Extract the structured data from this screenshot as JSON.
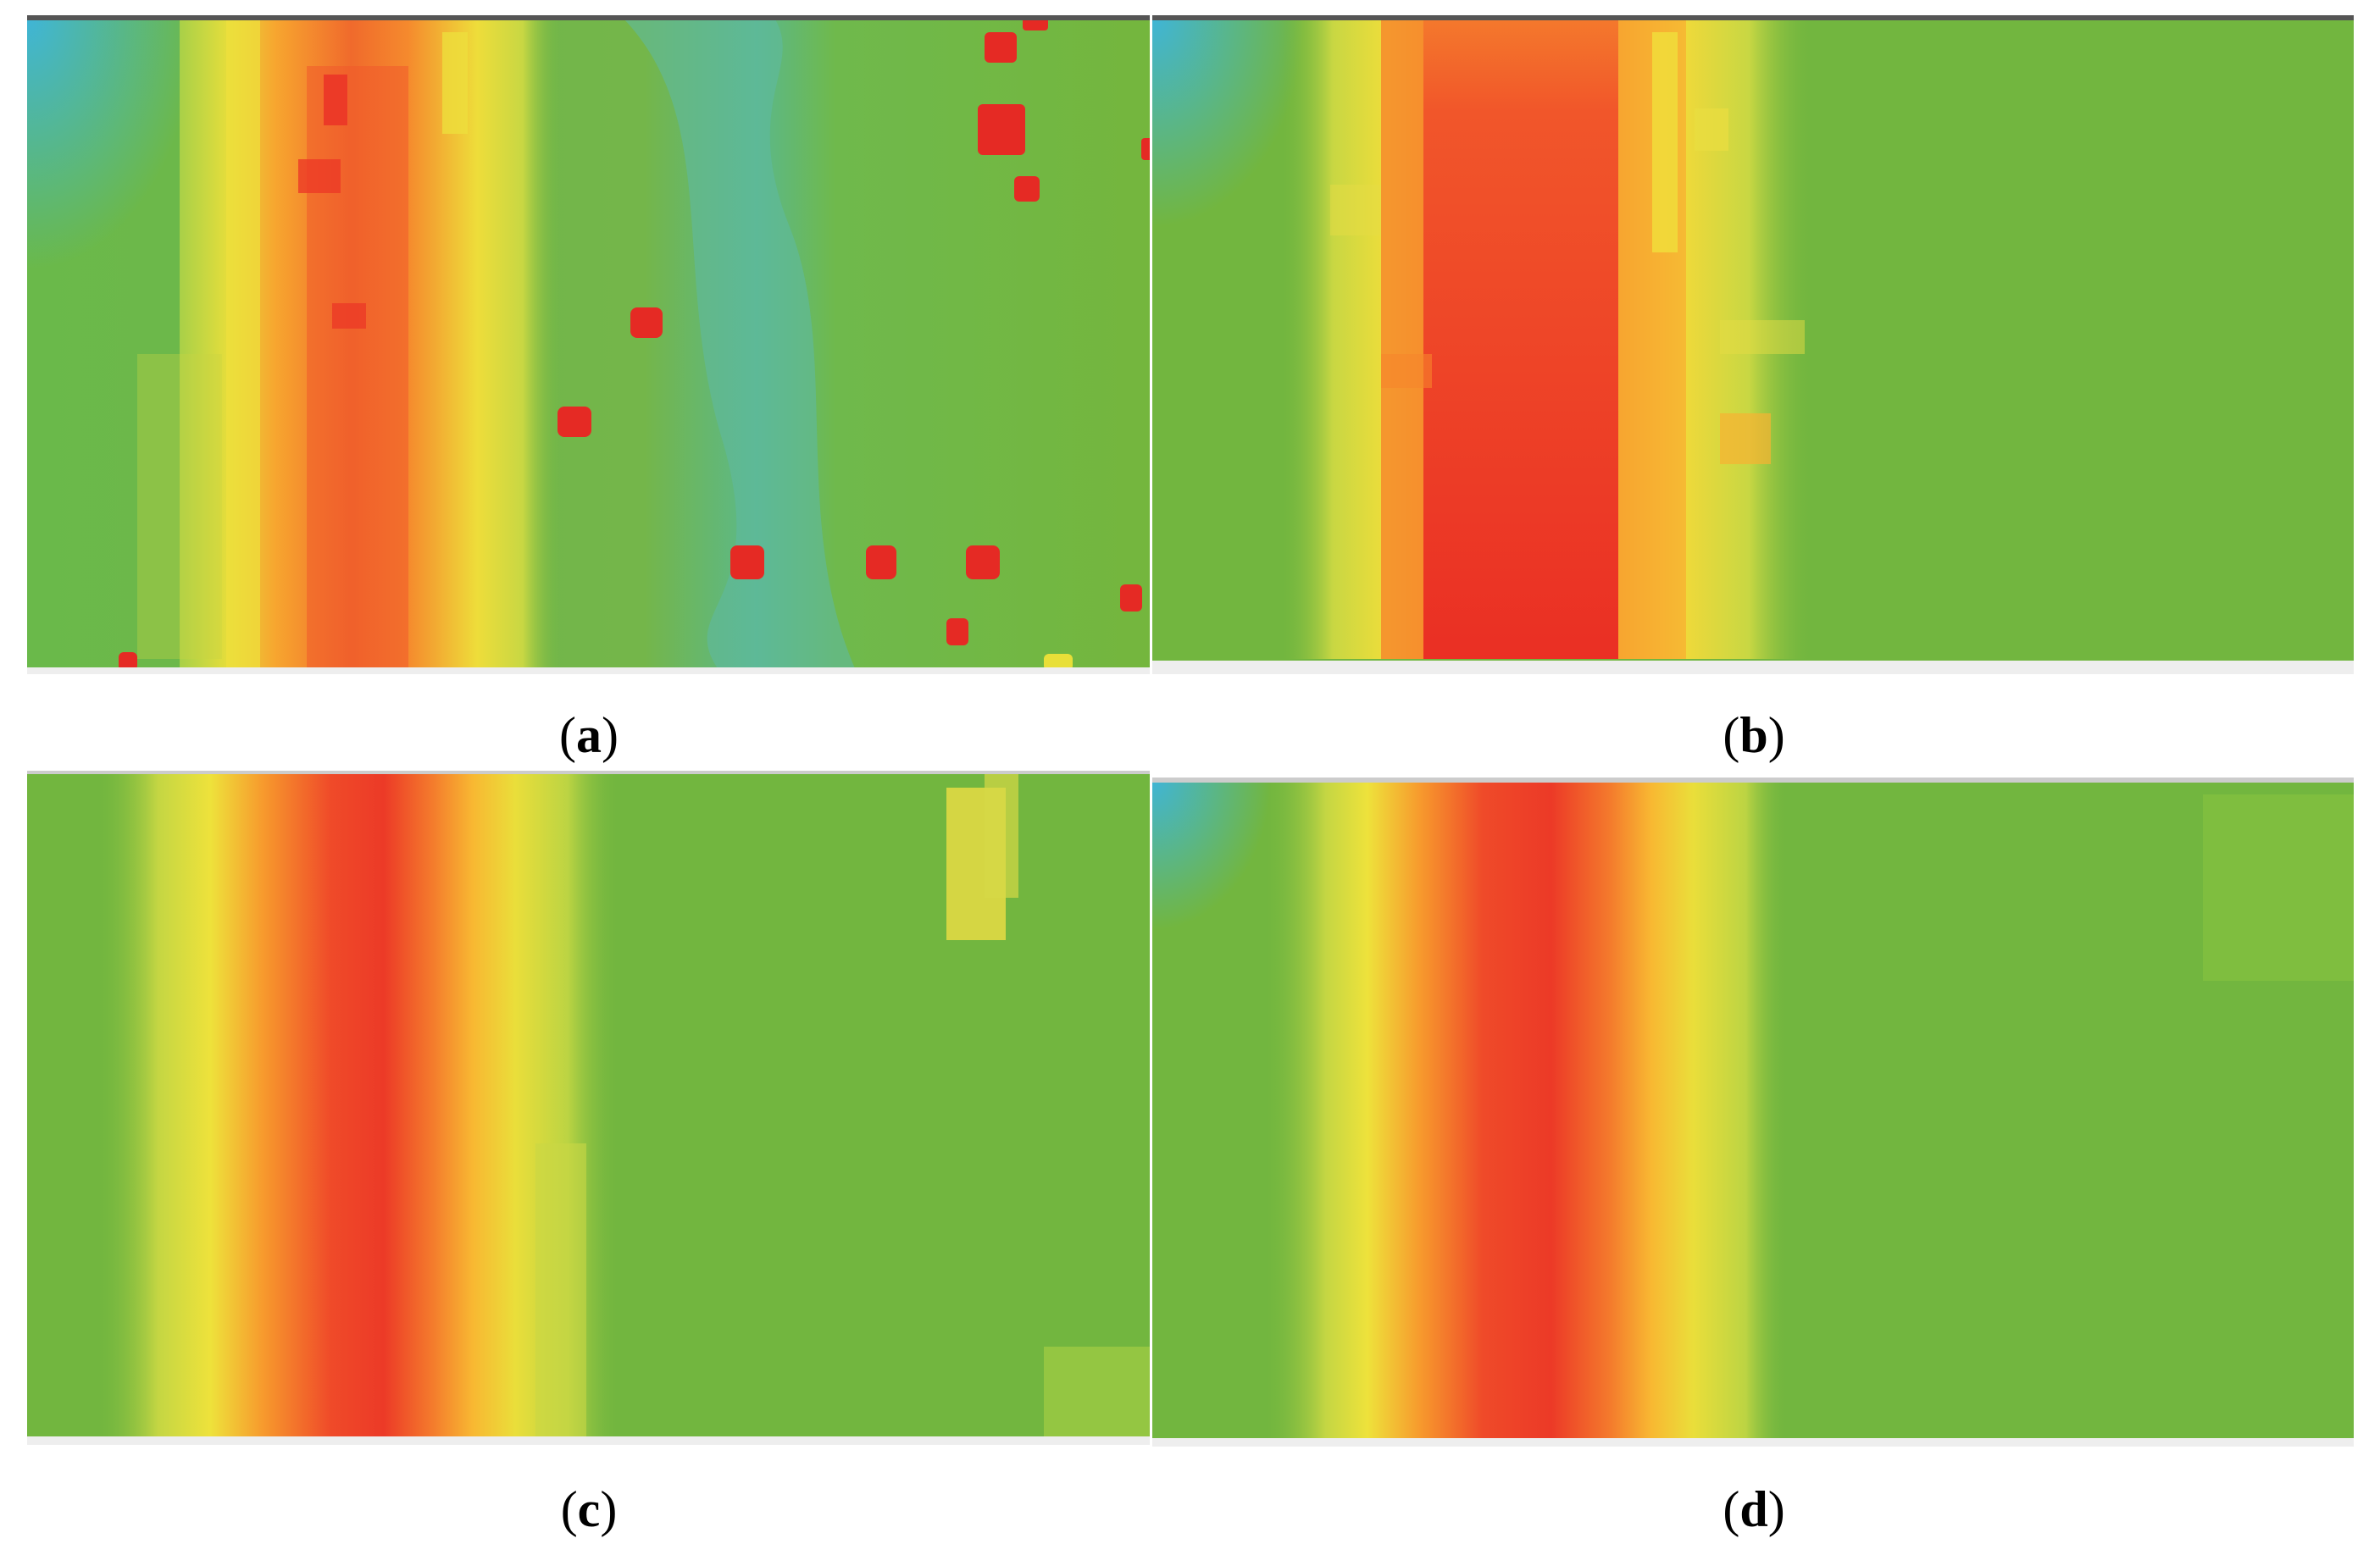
{
  "figure": {
    "panels": [
      {
        "id": "a",
        "caption_open": "(",
        "caption_letter": "a",
        "caption_close": ")"
      },
      {
        "id": "b",
        "caption_open": "(",
        "caption_letter": "b",
        "caption_close": ")"
      },
      {
        "id": "c",
        "caption_open": "(",
        "caption_letter": "c",
        "caption_close": ")"
      },
      {
        "id": "d",
        "caption_open": "(",
        "caption_letter": "d",
        "caption_close": ")"
      }
    ]
  },
  "colors": {
    "background_green": "#72b73e",
    "cool_cyan": "#4fb8c8",
    "warm_yellow": "#e8df38",
    "warm_orange": "#f59a2c",
    "hot_red": "#ec3a27"
  }
}
